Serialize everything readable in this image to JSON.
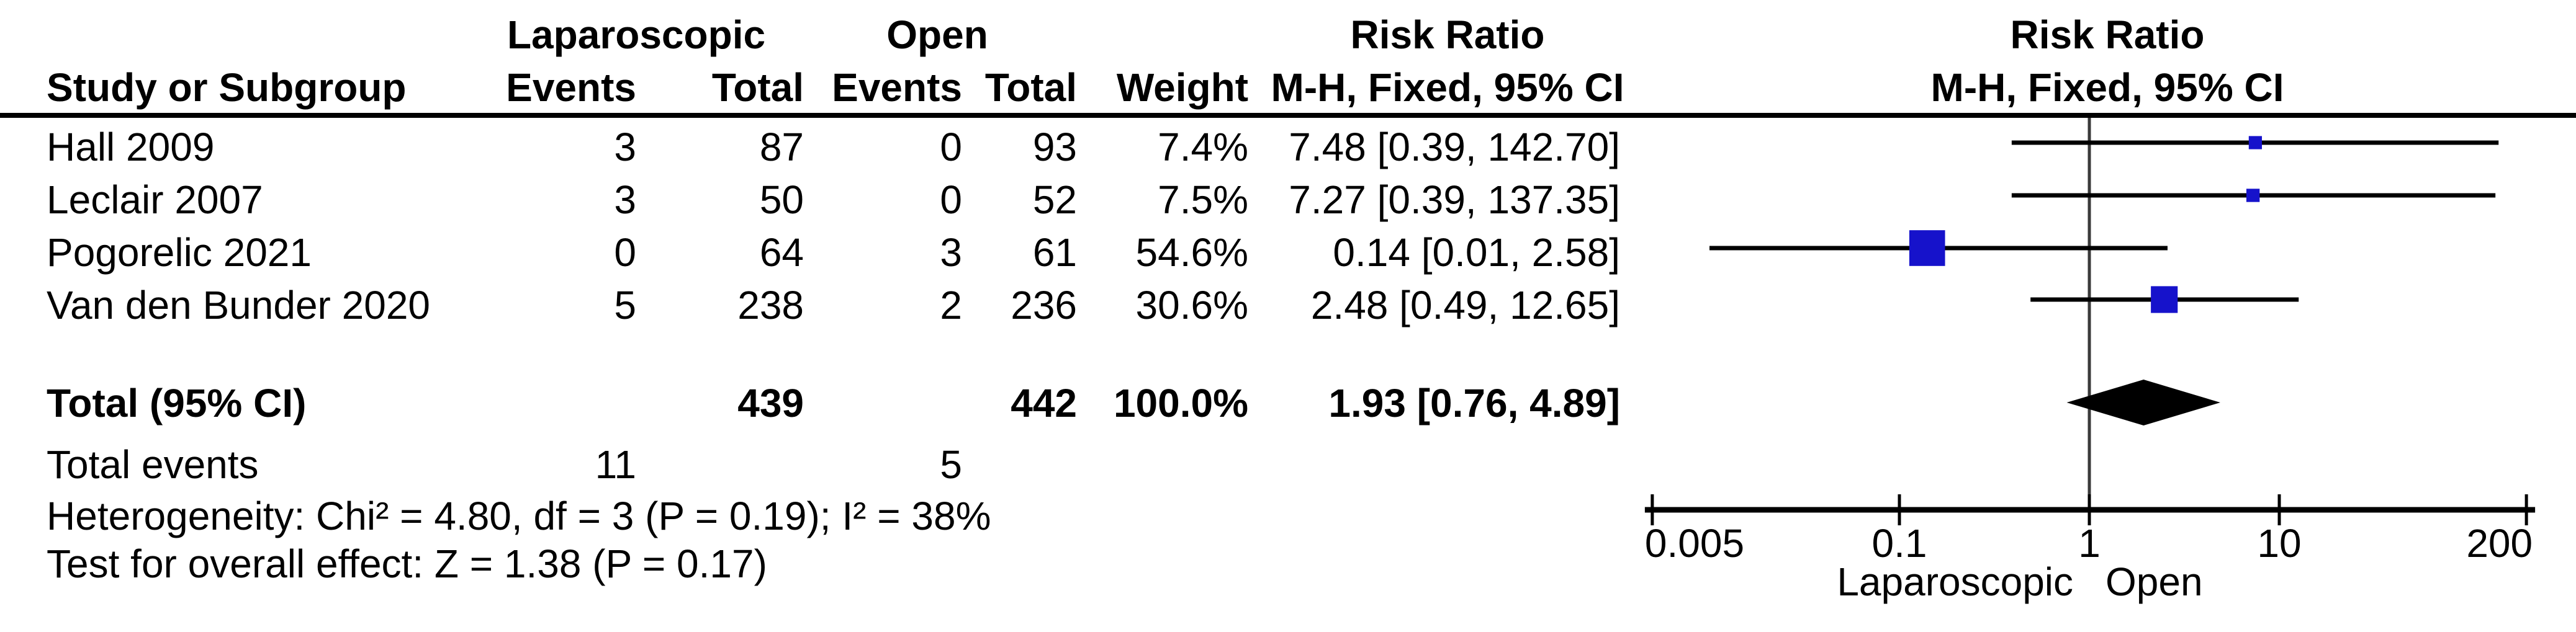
{
  "table": {
    "header": {
      "group1": "Laparoscopic",
      "group2": "Open",
      "risk_ratio_left": "Risk Ratio",
      "risk_ratio_right": "Risk Ratio",
      "study": "Study or Subgroup",
      "events1": "Events",
      "total1": "Total",
      "events2": "Events",
      "total2": "Total",
      "weight": "Weight",
      "mh_ci_left": "M-H, Fixed, 95% CI",
      "mh_ci_right": "M-H, Fixed, 95% CI"
    },
    "rows": [
      {
        "study": "Hall 2009",
        "e1": "3",
        "t1": "87",
        "e2": "0",
        "t2": "93",
        "weight": "7.4%",
        "ci": "7.48 [0.39, 142.70]"
      },
      {
        "study": "Leclair 2007",
        "e1": "3",
        "t1": "50",
        "e2": "0",
        "t2": "52",
        "weight": "7.5%",
        "ci": "7.27 [0.39, 137.35]"
      },
      {
        "study": "Pogorelic 2021",
        "e1": "0",
        "t1": "64",
        "e2": "3",
        "t2": "61",
        "weight": "54.6%",
        "ci": "0.14 [0.01, 2.58]"
      },
      {
        "study": "Van den Bunder 2020",
        "e1": "5",
        "t1": "238",
        "e2": "2",
        "t2": "236",
        "weight": "30.6%",
        "ci": "2.48 [0.49, 12.65]"
      }
    ],
    "total": {
      "label": "Total (95% CI)",
      "t1": "439",
      "t2": "442",
      "weight": "100.0%",
      "ci": "1.93 [0.76, 4.89]"
    },
    "total_events": {
      "label": "Total events",
      "e1": "11",
      "e2": "5"
    },
    "heterogeneity": "Heterogeneity: Chi² = 4.80, df = 3 (P = 0.19); I² = 38%",
    "overall_effect": "Test for overall effect: Z = 1.38 (P = 0.17)"
  },
  "chart_data": {
    "type": "forest",
    "x_scale": "log",
    "effect_measure": "Risk Ratio (M-H, Fixed, 95% CI)",
    "xlim": [
      0.005,
      200
    ],
    "ticks": [
      0.005,
      0.1,
      1,
      10,
      200
    ],
    "tick_labels": [
      "0.005",
      "0.1",
      "1",
      "10",
      "200"
    ],
    "center_line": 1,
    "studies": [
      {
        "name": "Hall 2009",
        "rr": 7.48,
        "ci_low": 0.39,
        "ci_high": 142.7,
        "weight_pct": 7.4
      },
      {
        "name": "Leclair 2007",
        "rr": 7.27,
        "ci_low": 0.39,
        "ci_high": 137.35,
        "weight_pct": 7.5
      },
      {
        "name": "Pogorelic 2021",
        "rr": 0.14,
        "ci_low": 0.01,
        "ci_high": 2.58,
        "weight_pct": 54.6
      },
      {
        "name": "Van den Bunder 2020",
        "rr": 2.48,
        "ci_low": 0.49,
        "ci_high": 12.65,
        "weight_pct": 30.6
      }
    ],
    "total": {
      "rr": 1.93,
      "ci_low": 0.76,
      "ci_high": 4.89
    },
    "footer_left": "Laparoscopic",
    "footer_right": "Open",
    "colors": {
      "square": "#1612CB",
      "diamond": "#000000",
      "ci_line": "#000000",
      "center_line": "#3a3a3a"
    }
  }
}
